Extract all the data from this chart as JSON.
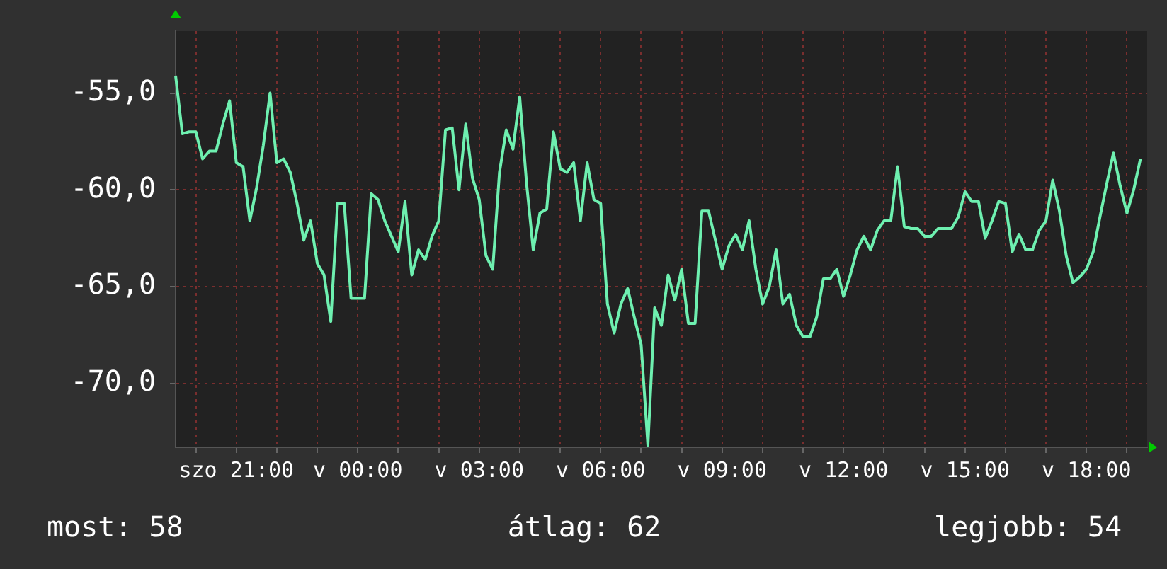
{
  "chart_data": {
    "type": "line",
    "categories": [
      null,
      null,
      null,
      null,
      null,
      null,
      null,
      null,
      null,
      "szo 21:00",
      null,
      null,
      null,
      null,
      null,
      null,
      null,
      null,
      null,
      null,
      null,
      null,
      null,
      null,
      null,
      null,
      null,
      "v 00:00",
      null,
      null,
      null,
      null,
      null,
      null,
      null,
      null,
      null,
      null,
      null,
      null,
      null,
      null,
      null,
      null,
      null,
      "v 03:00",
      null,
      null,
      null,
      null,
      null,
      null,
      null,
      null,
      null,
      null,
      null,
      null,
      null,
      null,
      null,
      null,
      null,
      "v 06:00",
      null,
      null,
      null,
      null,
      null,
      null,
      null,
      null,
      null,
      null,
      null,
      null,
      null,
      null,
      null,
      null,
      null,
      "v 09:00",
      null,
      null,
      null,
      null,
      null,
      null,
      null,
      null,
      null,
      null,
      null,
      null,
      null,
      null,
      null,
      null,
      null,
      "v 12:00",
      null,
      null,
      null,
      null,
      null,
      null,
      null,
      null,
      null,
      null,
      null,
      null,
      null,
      null,
      null,
      null,
      null,
      "v 15:00",
      null,
      null,
      null,
      null,
      null,
      null,
      null,
      null,
      null,
      null,
      null,
      null,
      null,
      null,
      null,
      null,
      null,
      "v 18:00",
      null,
      null,
      null,
      null,
      null,
      null,
      null,
      null,
      null
    ],
    "series": [
      {
        "color": "#6ef0b0",
        "values": [
          -54.1,
          -57.1,
          -57.0,
          -57.0,
          -58.4,
          -58.0,
          -58.0,
          -56.6,
          -55.4,
          -58.6,
          -58.8,
          -61.6,
          -59.9,
          -57.7,
          -55.0,
          -58.6,
          -58.4,
          -59.1,
          -60.7,
          -62.6,
          -61.6,
          -63.8,
          -64.4,
          -66.8,
          -60.7,
          -60.7,
          -65.6,
          -65.6,
          -65.6,
          -60.2,
          -60.5,
          -61.6,
          -62.4,
          -63.2,
          -60.6,
          -64.4,
          -63.1,
          -63.6,
          -62.4,
          -61.6,
          -56.9,
          -56.8,
          -60.0,
          -56.6,
          -59.4,
          -60.5,
          -63.4,
          -64.1,
          -59.1,
          -56.9,
          -57.9,
          -55.2,
          -59.6,
          -63.1,
          -61.2,
          -61.0,
          -57.0,
          -58.9,
          -59.1,
          -58.6,
          -61.6,
          -58.6,
          -60.5,
          -60.7,
          -65.9,
          -67.4,
          -65.9,
          -65.1,
          -66.6,
          -68.0,
          -73.2,
          -66.1,
          -67.0,
          -64.4,
          -65.7,
          -64.1,
          -66.9,
          -66.9,
          -61.1,
          -61.1,
          -62.6,
          -64.1,
          -62.9,
          -62.3,
          -63.1,
          -61.6,
          -64.1,
          -65.9,
          -65.0,
          -63.1,
          -65.9,
          -65.4,
          -67.0,
          -67.6,
          -67.6,
          -66.6,
          -64.6,
          -64.6,
          -64.1,
          -65.5,
          -64.4,
          -63.1,
          -62.4,
          -63.1,
          -62.1,
          -61.6,
          -61.6,
          -58.8,
          -61.9,
          -62.0,
          -62.0,
          -62.4,
          -62.4,
          -62.0,
          -62.0,
          -62.0,
          -61.4,
          -60.1,
          -60.6,
          -60.6,
          -62.5,
          -61.6,
          -60.6,
          -60.7,
          -63.2,
          -62.3,
          -63.1,
          -63.1,
          -62.1,
          -61.6,
          -59.5,
          -61.1,
          -63.4,
          -64.8,
          -64.5,
          -64.1,
          -63.2,
          -61.4,
          -59.7,
          -58.1,
          -59.8,
          -61.2,
          -60.0,
          -58.4,
          null
        ]
      }
    ],
    "ylim": [
      -73.3,
      -51.8
    ],
    "yticks": [
      {
        "value": -55,
        "label": "-55,0"
      },
      {
        "value": -60,
        "label": "-60,0"
      },
      {
        "value": -65,
        "label": "-65,0"
      },
      {
        "value": -70,
        "label": "-70,0"
      }
    ],
    "grid": true,
    "marker": "none",
    "line_style": "solid",
    "annotations": [
      "most: 58",
      "átlag: 62",
      "legjobb: 54"
    ]
  }
}
